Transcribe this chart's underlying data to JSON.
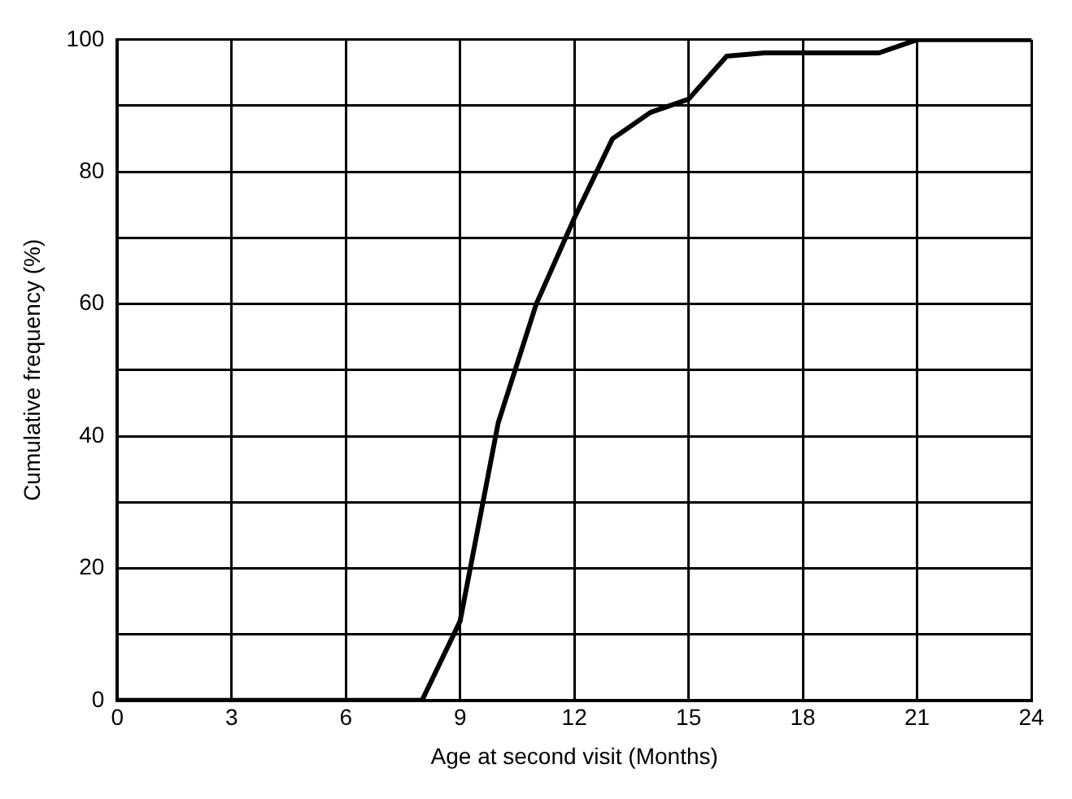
{
  "chart_data": {
    "type": "line",
    "xlabel": "Age at second visit (Months)",
    "ylabel": "Cumulative frequency (%)",
    "x": [
      0,
      8,
      9,
      10,
      11,
      12,
      13,
      14,
      15,
      16,
      17,
      20,
      21,
      24
    ],
    "series": [
      {
        "color": "#000000",
        "values": [
          0,
          0,
          12,
          42,
          60,
          73,
          85,
          89,
          91,
          97.5,
          98,
          98,
          100,
          100
        ]
      }
    ],
    "xlim": [
      0,
      24
    ],
    "xticks": [
      0,
      3,
      6,
      9,
      12,
      15,
      18,
      21,
      24
    ],
    "ylim": [
      0,
      100
    ],
    "yticks": [
      0,
      {
        "value": 10,
        "label": null
      },
      20,
      {
        "value": 30,
        "label": null
      },
      40,
      {
        "value": 50,
        "label": null
      },
      60,
      {
        "value": 70,
        "label": null
      },
      80,
      {
        "value": 90,
        "label": null
      },
      100
    ],
    "grid": true,
    "legend": false,
    "marker": "none",
    "line_style": "solid"
  }
}
